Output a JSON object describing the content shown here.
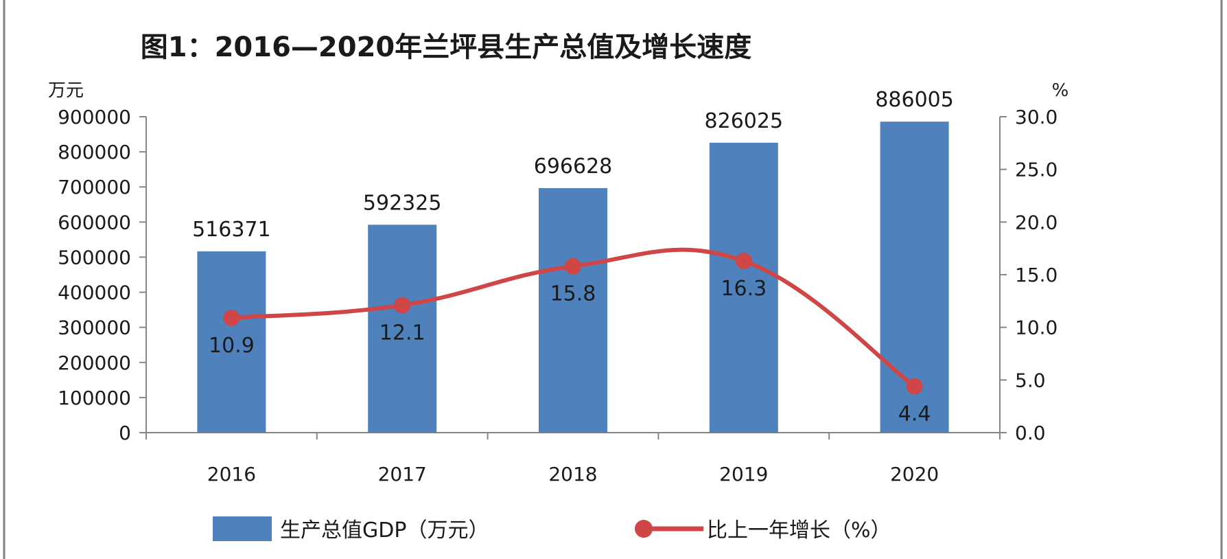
{
  "chart_data": {
    "type": "bar",
    "title": "图1：2016—2020年兰坪县生产总值及增长速度",
    "categories": [
      "2016",
      "2017",
      "2018",
      "2019",
      "2020"
    ],
    "y_left_unit": "万元",
    "y_right_unit": "%",
    "y_left_range": [
      0,
      900000
    ],
    "y_left_ticks": [
      "0",
      "100000",
      "200000",
      "300000",
      "400000",
      "500000",
      "600000",
      "700000",
      "800000",
      "900000"
    ],
    "y_right_range": [
      0,
      30
    ],
    "y_right_ticks": [
      "0.0",
      "5.0",
      "10.0",
      "15.0",
      "20.0",
      "25.0",
      "30.0"
    ],
    "grid": false,
    "legend_position": "bottom",
    "series": [
      {
        "name": "生产总值GDP（万元）",
        "type": "bar",
        "axis": "left",
        "color": "#4f81bd",
        "values": [
          516371,
          592325,
          696628,
          826025,
          886005
        ],
        "labels": [
          "516371",
          "592325",
          "696628",
          "826025",
          "886005"
        ]
      },
      {
        "name": "比上一年增长（%）",
        "type": "line",
        "axis": "right",
        "color": "#d04545",
        "values": [
          10.9,
          12.1,
          15.8,
          16.3,
          4.4
        ],
        "labels": [
          "10.9",
          "12.1",
          "15.8",
          "16.3",
          "4.4"
        ]
      }
    ]
  }
}
